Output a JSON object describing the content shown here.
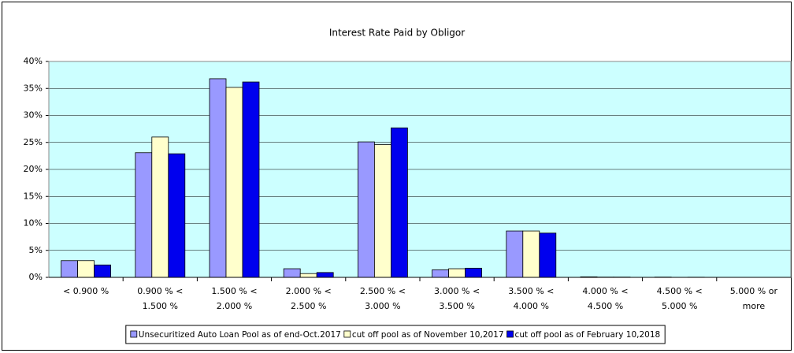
{
  "chart_data": {
    "type": "bar",
    "title": "Interest Rate Paid by Obligor",
    "categories": [
      "< 0.900 %",
      "0.900 % <\n1.500 %",
      "1.500 % <\n2.000 %",
      "2.000 % <\n2.500 %",
      "2.500 % <\n3.000 %",
      "3.000 % <\n3.500 %",
      "3.500 % <\n4.000 %",
      "4.000 % <\n4.500 %",
      "4.500 % <\n5.000 %",
      "5.000 % or\nmore"
    ],
    "series": [
      {
        "name": "Unsecuritized Auto Loan Pool as of end-Oct.2017",
        "color": "#9999ff",
        "values": [
          3.1,
          23.1,
          36.8,
          1.6,
          25.1,
          1.4,
          8.6,
          0.1,
          0.05,
          0
        ]
      },
      {
        "name": "cut off pool as of November 10,2017",
        "color": "#ffffcc",
        "values": [
          3.1,
          26.0,
          35.2,
          0.7,
          24.6,
          1.6,
          8.6,
          0.05,
          0,
          0
        ]
      },
      {
        "name": "cut off pool as of February 10,2018",
        "color": "#0000ee",
        "values": [
          2.3,
          22.9,
          36.2,
          0.9,
          27.7,
          1.7,
          8.2,
          0.05,
          0.03,
          0
        ]
      }
    ],
    "ylim": [
      0,
      40
    ],
    "yticks": [
      {
        "value": 0,
        "label": "0%"
      },
      {
        "value": 5,
        "label": "5%"
      },
      {
        "value": 10,
        "label": "10%"
      },
      {
        "value": 15,
        "label": "15%"
      },
      {
        "value": 20,
        "label": "20%"
      },
      {
        "value": 25,
        "label": "25%"
      },
      {
        "value": 30,
        "label": "30%"
      },
      {
        "value": 35,
        "label": "35%"
      },
      {
        "value": 40,
        "label": "40%"
      }
    ],
    "grid": true,
    "plot_background": "#ccffff",
    "legend": "bottom"
  }
}
